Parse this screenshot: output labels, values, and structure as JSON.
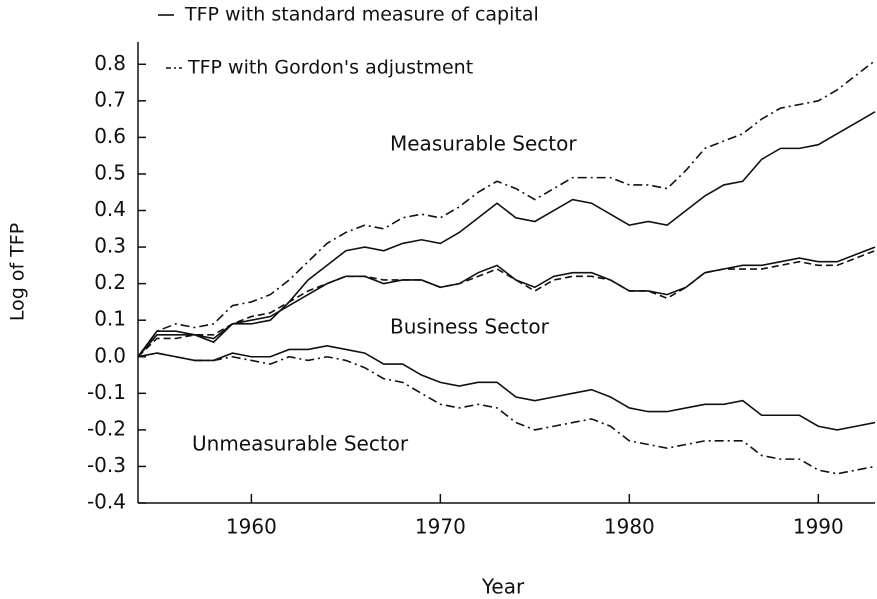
{
  "chart_data": {
    "type": "line",
    "xlabel": "Year",
    "ylabel": "Log of TFP",
    "xlim": [
      1954,
      1993
    ],
    "ylim": [
      -0.4,
      0.85
    ],
    "xticks": [
      1960,
      1970,
      1980,
      1990
    ],
    "yticks": [
      0.8,
      0.7,
      0.6,
      0.5,
      0.4,
      0.3,
      0.2,
      0.1,
      {
        "value": 0,
        "label": "0.0"
      },
      -0.1,
      -0.2,
      -0.3,
      -0.4
    ],
    "legend": [
      {
        "label": "TFP with standard measure of capital",
        "style": "solid"
      },
      {
        "label": "TFP with Gordon's adjustment",
        "style": "dashdot"
      }
    ],
    "x": [
      1954,
      1955,
      1956,
      1957,
      1958,
      1959,
      1960,
      1961,
      1962,
      1963,
      1964,
      1965,
      1966,
      1967,
      1968,
      1969,
      1970,
      1971,
      1972,
      1973,
      1974,
      1975,
      1976,
      1977,
      1978,
      1979,
      1980,
      1981,
      1982,
      1983,
      1984,
      1985,
      1986,
      1987,
      1988,
      1989,
      1990,
      1991,
      1992,
      1993
    ],
    "groups": [
      {
        "name": "Measurable Sector",
        "series": [
          {
            "style": "solid",
            "values": [
              0,
              0.06,
              0.06,
              0.06,
              0.04,
              0.09,
              0.09,
              0.1,
              0.15,
              0.21,
              0.25,
              0.29,
              0.3,
              0.29,
              0.31,
              0.32,
              0.31,
              0.34,
              0.38,
              0.42,
              0.38,
              0.37,
              0.4,
              0.43,
              0.42,
              0.39,
              0.36,
              0.37,
              0.36,
              0.4,
              0.44,
              0.47,
              0.48,
              0.54,
              0.57,
              0.57,
              0.58,
              0.61,
              0.64,
              0.67
            ]
          },
          {
            "style": "dashdot",
            "values": [
              0,
              0.07,
              0.09,
              0.08,
              0.09,
              0.14,
              0.15,
              0.17,
              0.21,
              0.26,
              0.31,
              0.34,
              0.36,
              0.35,
              0.38,
              0.39,
              0.38,
              0.41,
              0.45,
              0.48,
              0.46,
              0.43,
              0.46,
              0.49,
              0.49,
              0.49,
              0.47,
              0.47,
              0.46,
              0.51,
              0.57,
              0.59,
              0.61,
              0.65,
              0.68,
              0.69,
              0.7,
              0.73,
              0.77,
              0.81
            ]
          }
        ]
      },
      {
        "name": "Business Sector",
        "series": [
          {
            "style": "solid",
            "values": [
              0,
              0.07,
              0.07,
              0.06,
              0.05,
              0.09,
              0.1,
              0.11,
              0.14,
              0.17,
              0.2,
              0.22,
              0.22,
              0.2,
              0.21,
              0.21,
              0.19,
              0.2,
              0.23,
              0.25,
              0.21,
              0.19,
              0.22,
              0.23,
              0.23,
              0.21,
              0.18,
              0.18,
              0.17,
              0.19,
              0.23,
              0.24,
              0.25,
              0.25,
              0.26,
              0.27,
              0.26,
              0.26,
              0.28,
              0.3
            ]
          },
          {
            "style": "dashed",
            "values": [
              0,
              0.05,
              0.05,
              0.06,
              0.06,
              0.09,
              0.11,
              0.12,
              0.15,
              0.18,
              0.2,
              0.22,
              0.22,
              0.21,
              0.21,
              0.21,
              0.19,
              0.2,
              0.22,
              0.24,
              0.21,
              0.18,
              0.21,
              0.22,
              0.22,
              0.21,
              0.18,
              0.18,
              0.16,
              0.19,
              0.23,
              0.24,
              0.24,
              0.24,
              0.25,
              0.26,
              0.25,
              0.25,
              0.27,
              0.29
            ]
          }
        ]
      },
      {
        "name": "Unmeasurable Sector",
        "series": [
          {
            "style": "solid",
            "values": [
              0,
              0.01,
              0,
              -0.01,
              -0.01,
              0.01,
              0,
              0,
              0.02,
              0.02,
              0.03,
              0.02,
              0.01,
              -0.02,
              -0.02,
              -0.05,
              -0.07,
              -0.08,
              -0.07,
              -0.07,
              -0.11,
              -0.12,
              -0.11,
              -0.1,
              -0.09,
              -0.11,
              -0.14,
              -0.15,
              -0.15,
              -0.14,
              -0.13,
              -0.13,
              -0.12,
              -0.16,
              -0.16,
              -0.16,
              -0.19,
              -0.2,
              -0.19,
              -0.18
            ]
          },
          {
            "style": "dashdot",
            "values": [
              0,
              0.01,
              0,
              -0.01,
              -0.01,
              0,
              -0.01,
              -0.02,
              0,
              -0.01,
              0,
              -0.01,
              -0.03,
              -0.06,
              -0.07,
              -0.1,
              -0.13,
              -0.14,
              -0.13,
              -0.14,
              -0.18,
              -0.2,
              -0.19,
              -0.18,
              -0.17,
              -0.19,
              -0.23,
              -0.24,
              -0.25,
              -0.24,
              -0.23,
              -0.23,
              -0.23,
              -0.27,
              -0.28,
              -0.28,
              -0.31,
              -0.32,
              -0.31,
              -0.3
            ]
          }
        ]
      }
    ]
  }
}
